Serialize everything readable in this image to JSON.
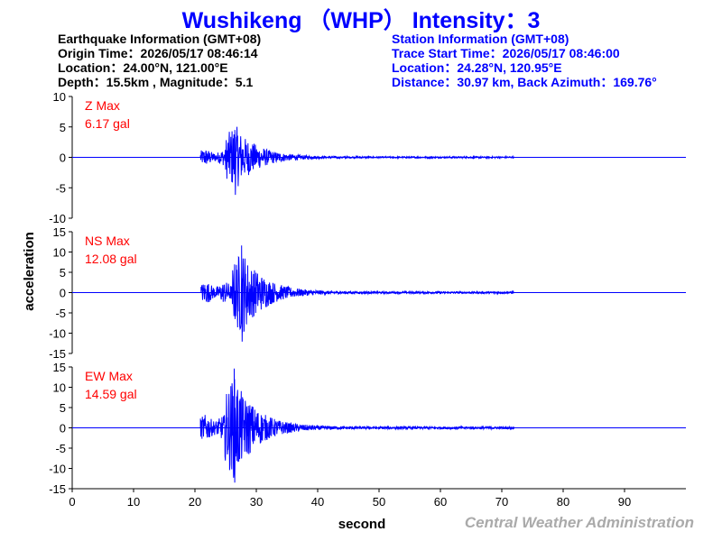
{
  "title": "Wushikeng （WHP） Intensity：3",
  "earthquake_info": {
    "heading": "Earthquake Information  (GMT+08)",
    "origin_time": "Origin Time：2026/05/17 08:46:14",
    "location": "Location：24.00°N, 121.00°E",
    "depth_magnitude": "Depth：15.5km , Magnitude：5.1"
  },
  "station_info": {
    "heading": "Station Information  (GMT+08)",
    "trace_start": "Trace Start Time：2026/05/17 08:46:00",
    "location": "Location：24.28°N, 120.95°E",
    "distance": "Distance：30.97 km, Back Azimuth：169.76°"
  },
  "footer": "Central Weather Administration",
  "colors": {
    "title": "#0000ff",
    "trace": "#0000ff",
    "label": "#ff0000",
    "footer": "#aaaaaa"
  },
  "chart_data": {
    "type": "line",
    "xlabel": "second",
    "ylabel": "acceleration",
    "xlim": [
      0,
      100
    ],
    "xticks": [
      0,
      10,
      20,
      30,
      40,
      50,
      60,
      70,
      80,
      90
    ],
    "grid": false,
    "panels": [
      {
        "component": "Z",
        "label": "Z Max",
        "max_text": "6.17 gal",
        "peak": 6.17,
        "ylim": [
          -10,
          10
        ],
        "yticks": [
          -10,
          -5,
          0,
          5,
          10
        ],
        "onset": 20.9,
        "peak_time": 26.5,
        "pos_peak": 4.5,
        "neg_peak": -6.17
      },
      {
        "component": "NS",
        "label": "NS Max",
        "max_text": "12.08 gal",
        "peak": 12.08,
        "ylim": [
          -15,
          15
        ],
        "yticks": [
          -15,
          -10,
          -5,
          0,
          5,
          10,
          15
        ],
        "onset": 21.0,
        "peak_time": 27.6,
        "pos_peak": 11.6,
        "neg_peak": -12.08
      },
      {
        "component": "EW",
        "label": "EW Max",
        "max_text": "14.59 gal",
        "peak": 14.59,
        "ylim": [
          -15,
          15
        ],
        "yticks": [
          -15,
          -10,
          -5,
          0,
          5,
          10,
          15
        ],
        "onset": 20.9,
        "peak_time": 26.4,
        "pos_peak": 14.59,
        "neg_peak": -13.5
      }
    ]
  }
}
